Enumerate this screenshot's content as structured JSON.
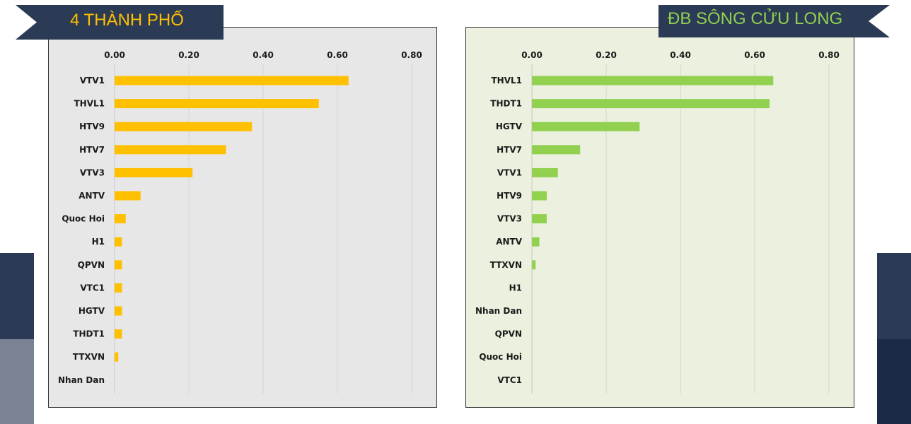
{
  "colors": {
    "navy": "#2b3a55",
    "navy_dark": "#1c2a45",
    "slate": "#7a8394",
    "orange": "#ffc000",
    "green": "#92d050",
    "left_panel_bg": "#e7e7e7",
    "right_panel_bg": "#ebf1de"
  },
  "banners": {
    "left": "4 THÀNH PHỐ",
    "right": "ĐB SÔNG CỬU LONG"
  },
  "chart_data": [
    {
      "type": "bar",
      "orientation": "horizontal",
      "title": "4 THÀNH PHỐ",
      "xlim": [
        0,
        0.8
      ],
      "ticks": [
        "0.00",
        "0.20",
        "0.40",
        "0.60",
        "0.80"
      ],
      "tick_values": [
        0,
        0.2,
        0.4,
        0.6,
        0.8
      ],
      "axis_position": "top",
      "grid": true,
      "bar_color": "#ffc000",
      "categories": [
        "VTV1",
        "THVL1",
        "HTV9",
        "HTV7",
        "VTV3",
        "ANTV",
        "Quoc Hoi",
        "H1",
        "QPVN",
        "VTC1",
        "HGTV",
        "THDT1",
        "TTXVN",
        "Nhan Dan"
      ],
      "values": [
        0.63,
        0.55,
        0.37,
        0.3,
        0.21,
        0.07,
        0.03,
        0.02,
        0.02,
        0.02,
        0.02,
        0.02,
        0.01,
        0.0
      ]
    },
    {
      "type": "bar",
      "orientation": "horizontal",
      "title": "ĐB SÔNG CỬU LONG",
      "xlim": [
        0,
        0.8
      ],
      "ticks": [
        "0.00",
        "0.20",
        "0.40",
        "0.60",
        "0.80"
      ],
      "tick_values": [
        0,
        0.2,
        0.4,
        0.6,
        0.8
      ],
      "axis_position": "top",
      "grid": true,
      "bar_color": "#92d050",
      "categories": [
        "THVL1",
        "THDT1",
        "HGTV",
        "HTV7",
        "VTV1",
        "HTV9",
        "VTV3",
        "ANTV",
        "TTXVN",
        "H1",
        "Nhan Dan",
        "QPVN",
        "Quoc Hoi",
        "VTC1"
      ],
      "values": [
        0.65,
        0.64,
        0.29,
        0.13,
        0.07,
        0.04,
        0.04,
        0.02,
        0.01,
        0.0,
        0.0,
        0.0,
        0.0,
        0.0
      ]
    }
  ]
}
